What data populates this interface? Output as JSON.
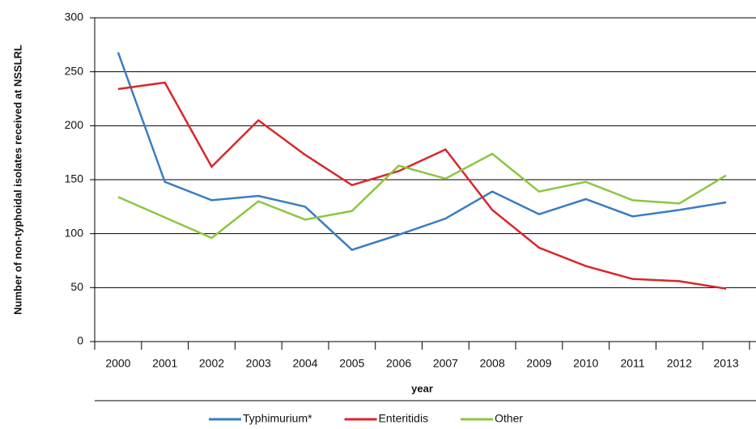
{
  "chart_data": {
    "type": "line",
    "y_label": "Number of non-typhoidal isolates received at NSSLRL",
    "x_label": "year",
    "categories": [
      "2000",
      "2001",
      "2002",
      "2003",
      "2004",
      "2005",
      "2006",
      "2007",
      "2008",
      "2009",
      "2010",
      "2011",
      "2012",
      "2013"
    ],
    "series": [
      {
        "name": "Typhimurium*",
        "color": "#3a7dc0",
        "values": [
          268,
          148,
          131,
          135,
          125,
          85,
          99,
          114,
          139,
          118,
          132,
          116,
          122,
          129
        ]
      },
      {
        "name": "Enteritidis",
        "color": "#d9262b",
        "values": [
          234,
          240,
          162,
          205,
          173,
          145,
          158,
          178,
          122,
          87,
          70,
          58,
          56,
          49
        ]
      },
      {
        "name": "Other",
        "color": "#8dc63f",
        "values": [
          134,
          115,
          96,
          130,
          113,
          121,
          163,
          151,
          174,
          139,
          148,
          131,
          128,
          154
        ]
      }
    ],
    "ylim": [
      0,
      300
    ],
    "yticks": [
      0,
      50,
      100,
      150,
      200,
      250,
      300
    ],
    "grid": true,
    "legend": "bottom"
  }
}
